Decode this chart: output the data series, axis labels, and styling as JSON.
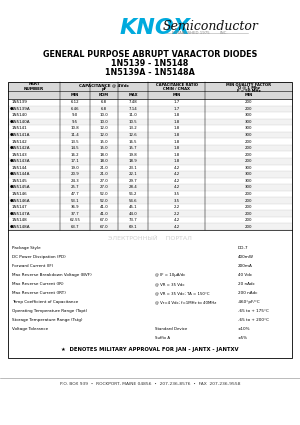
{
  "title_line1": "GENERAL PURPOSE ABRUPT VARACTOR DIODES",
  "title_line2": "1N5139 - 1N5148",
  "title_line3": "1N5139A - 1N5148A",
  "table_rows": [
    [
      "1N5139",
      "6.12",
      "6.8",
      "7.48",
      "1.7",
      "200"
    ],
    [
      "1N5139A",
      "6.46",
      "6.8",
      "7.14",
      "1.7",
      "200"
    ],
    [
      "1N5140",
      "9.0",
      "10.0",
      "11.0",
      "1.8",
      "300"
    ],
    [
      "1N5140A",
      "9.5",
      "10.0",
      "10.5",
      "1.8",
      "300"
    ],
    [
      "1N5141",
      "10.8",
      "12.0",
      "13.2",
      "1.8",
      "300"
    ],
    [
      "1N5141A",
      "11.4",
      "12.0",
      "12.6",
      "1.8",
      "300"
    ],
    [
      "1N5142",
      "13.5",
      "15.0",
      "16.5",
      "1.8",
      "200"
    ],
    [
      "1N5142A",
      "14.5",
      "15.0",
      "15.7",
      "1.8",
      "200"
    ],
    [
      "1N5143",
      "16.2",
      "18.0",
      "19.8",
      "1.8",
      "200"
    ],
    [
      "1N5143A",
      "17.1",
      "18.0",
      "18.9",
      "1.8",
      "200"
    ],
    [
      "1N5144",
      "19.0",
      "21.0",
      "23.1",
      "4.2",
      "300"
    ],
    [
      "1N5144A",
      "20.9",
      "21.0",
      "22.1",
      "4.2",
      "300"
    ],
    [
      "1N5145",
      "24.3",
      "27.0",
      "29.7",
      "4.2",
      "300"
    ],
    [
      "1N5145A",
      "25.7",
      "27.0",
      "28.4",
      "4.2",
      "300"
    ],
    [
      "1N5146",
      "47.7",
      "52.0",
      "56.2",
      "3.5",
      "200"
    ],
    [
      "1N5146A",
      "53.1",
      "52.0",
      "54.6",
      "3.5",
      "200"
    ],
    [
      "1N5147",
      "36.9",
      "41.0",
      "45.1",
      "2.2",
      "200"
    ],
    [
      "1N5147A",
      "37.7",
      "41.0",
      "44.0",
      "2.2",
      "200"
    ],
    [
      "1N5148",
      "62.55",
      "67.0",
      "73.7",
      "4.2",
      "200"
    ],
    [
      "1N5148A",
      "63.7",
      "67.0",
      "69.1",
      "4.2",
      "200"
    ]
  ],
  "starred_parts": [
    "1N5139A",
    "1N5140A",
    "1N5141A",
    "1N5142A",
    "1N5143A",
    "1N5144A",
    "1N5145A",
    "1N5146A",
    "1N5147A",
    "1N5148A"
  ],
  "bg_color": "#ffffff",
  "knox_color": "#00aadd",
  "text_color": "#000000"
}
